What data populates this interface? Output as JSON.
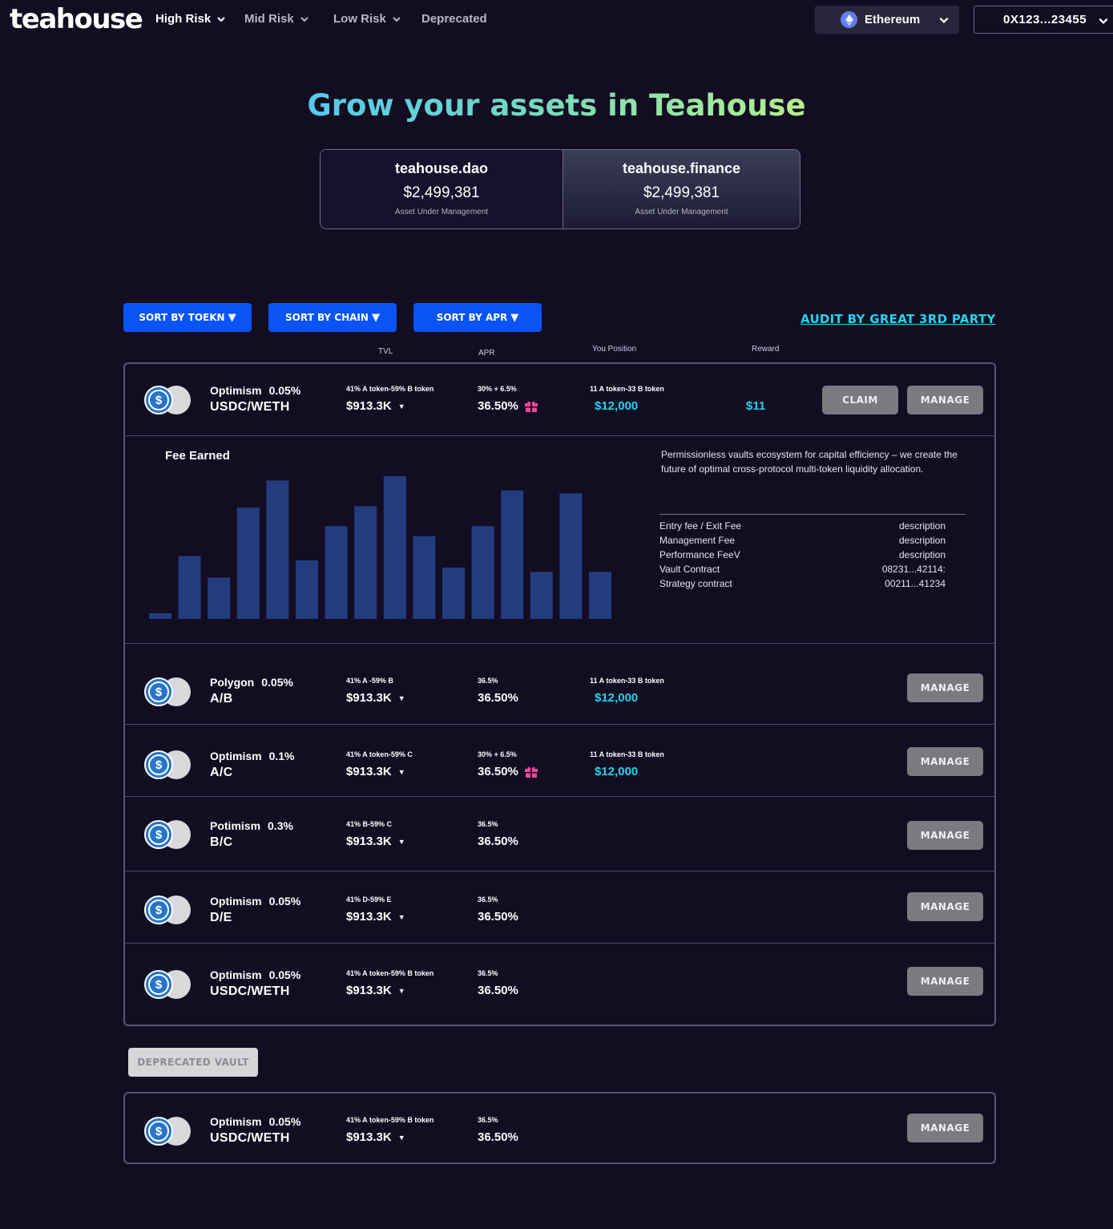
{
  "nav": {
    "logo": "teahouse",
    "items": [
      {
        "label": "High Risk"
      },
      {
        "label": "Mid Risk"
      },
      {
        "label": "Low Risk"
      },
      {
        "label": "Deprecated"
      }
    ],
    "chain": "Ethereum",
    "wallet": "0X123...23455"
  },
  "hero": {
    "title": "Grow your assets in Teahouse",
    "stats": [
      {
        "name": "teahouse.dao",
        "value": "$2,499,381",
        "caption": "Asset Under Management"
      },
      {
        "name": "teahouse.finance",
        "value": "$2,499,381",
        "caption": "Asset Under Management"
      }
    ]
  },
  "sort": {
    "token": "SORT BY TOEKN",
    "chain": "SORT BY CHAIN",
    "apr": "SORT BY APR",
    "arrow": "▼",
    "audit": "AUDIT BY GREAT 3RD PARTY"
  },
  "columns": {
    "tvl": "TVL",
    "apr": "APR",
    "position": "You Position",
    "reward": "Reward"
  },
  "vaults": [
    {
      "chain": "Optimism",
      "fee": "0.05%",
      "pair": "USDC/WETH",
      "tvl_sub": "41% A token-59% B token",
      "tvl": "$913.3K",
      "apr_sub": "30% + 6.5%",
      "apr": "36.50%",
      "gift": true,
      "pos_sub": "11 A token-33  B token",
      "position": "$12,000",
      "reward": "$11",
      "claim": "CLAIM",
      "manage": "MANAGE"
    },
    {
      "chain": "Polygon",
      "fee": "0.05%",
      "pair": "A/B",
      "tvl_sub": "41% A -59% B",
      "tvl": "$913.3K",
      "apr_sub": "36.5%",
      "apr": "36.50%",
      "pos_sub": "11 A token-33  B token",
      "position": "$12,000",
      "manage": "MANAGE"
    },
    {
      "chain": "Optimism",
      "fee": "0.1%",
      "pair": "A/C",
      "tvl_sub": "41% A token-59% C",
      "tvl": "$913.3K",
      "apr_sub": "30% + 6.5%",
      "apr": "36.50%",
      "gift": true,
      "pos_sub": "11 A token-33  B token",
      "position": "$12,000",
      "manage": "MANAGE"
    },
    {
      "chain": "Potimism",
      "fee": "0.3%",
      "pair": "B/C",
      "tvl_sub": "41% B-59% C",
      "tvl": "$913.3K",
      "apr_sub": "36.5%",
      "apr": "36.50%",
      "manage": "MANAGE"
    },
    {
      "chain": "Optimism",
      "fee": "0.05%",
      "pair": "D/E",
      "tvl_sub": "41% D-59% E",
      "tvl": "$913.3K",
      "apr_sub": "36.5%",
      "apr": "36.50%",
      "manage": "MANAGE"
    },
    {
      "chain": "Optimism",
      "fee": "0.05%",
      "pair": "USDC/WETH",
      "tvl_sub": "41% A token-59% B token",
      "tvl": "$913.3K",
      "apr_sub": "36.5%",
      "apr": "36.50%",
      "manage": "MANAGE"
    }
  ],
  "detail": {
    "fee_title": "Fee Earned",
    "description": "Permissionless vaults ecosystem for capital efficiency – we create the future of optimal cross-protocol multi-token liquidity allocation.",
    "rows": [
      {
        "label": "Entry fee / Exit Fee",
        "value": "description"
      },
      {
        "label": "Management Fee",
        "value": "description"
      },
      {
        "label": "Performance FeeV",
        "value": "description"
      },
      {
        "label": "Vault Contract",
        "value": "08231...42114:"
      },
      {
        "label": "Strategy contract",
        "value": "00211...41234"
      }
    ]
  },
  "deprecated": {
    "label": "DEPRECATED VAULT",
    "vault": {
      "chain": "Optimism",
      "fee": "0.05%",
      "pair": "USDC/WETH",
      "tvl_sub": "41% A token-59% B token",
      "tvl": "$913.3K",
      "apr_sub": "36.5%",
      "apr": "36.50%",
      "manage": "MANAGE"
    }
  },
  "colors": {
    "background": "#130d22",
    "accent_blue": "#0a54f5",
    "cyan": "#22d3ee",
    "bar": "#233c7e",
    "gift": "#ec4899",
    "button_grey": "#7a7a80"
  },
  "chart_data": {
    "type": "bar",
    "title": "Fee Earned",
    "values": [
      4,
      44,
      29,
      78,
      97,
      41,
      65,
      79,
      100,
      58,
      36,
      65,
      90,
      33,
      88,
      33
    ]
  }
}
